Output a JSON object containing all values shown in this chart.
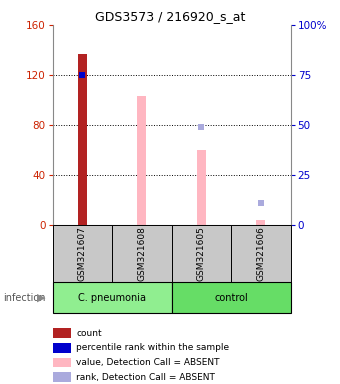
{
  "title": "GDS3573 / 216920_s_at",
  "samples": [
    "GSM321607",
    "GSM321608",
    "GSM321605",
    "GSM321606"
  ],
  "count_values": [
    137,
    0,
    0,
    0
  ],
  "count_color": "#B22222",
  "percentile_values": [
    75,
    0,
    0,
    0
  ],
  "percentile_color": "#0000CC",
  "absent_value_bars": [
    0,
    103,
    60,
    4
  ],
  "absent_value_color": "#FFB6C1",
  "absent_rank_dots": [
    0,
    0,
    49,
    11
  ],
  "absent_rank_color": "#AAAADD",
  "ylim_left": [
    0,
    160
  ],
  "ylim_right": [
    0,
    100
  ],
  "yticks_left": [
    0,
    40,
    80,
    120,
    160
  ],
  "yticks_right": [
    0,
    25,
    50,
    75,
    100
  ],
  "ytick_right_labels": [
    "0",
    "25",
    "50",
    "75",
    "100%"
  ],
  "left_tick_color": "#CC2200",
  "right_tick_color": "#0000CC",
  "grid_lines": [
    40,
    80,
    120
  ],
  "cell_bg": "#C8C8C8",
  "cpneumonia_color": "#90EE90",
  "control_color": "#66DD66",
  "fig_bg": "#FFFFFF",
  "legend_items": [
    {
      "label": "count",
      "color": "#B22222"
    },
    {
      "label": "percentile rank within the sample",
      "color": "#0000CC"
    },
    {
      "label": "value, Detection Call = ABSENT",
      "color": "#FFB6C1"
    },
    {
      "label": "rank, Detection Call = ABSENT",
      "color": "#AAAADD"
    }
  ]
}
